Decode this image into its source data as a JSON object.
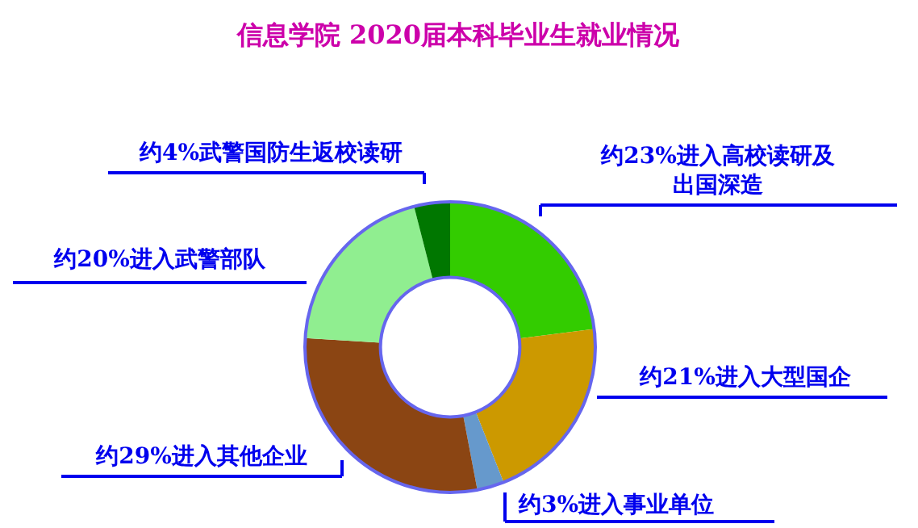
{
  "chart_data": {
    "type": "donut",
    "title": "信息学院 2020届本科毕业生就业情况",
    "categories": [
      "约23%进入高校读研及出国深造",
      "约21%进入大型国企",
      "约3%进入事业单位",
      "约29%进入其他企业",
      "约20%进入武警部队",
      "约4%武警国防生返校读研"
    ],
    "values": [
      23,
      21,
      3,
      29,
      20,
      4
    ],
    "colors": [
      "#33cc00",
      "#cc9900",
      "#6699cc",
      "#8b4513",
      "#90ee90",
      "#007700"
    ]
  }
}
